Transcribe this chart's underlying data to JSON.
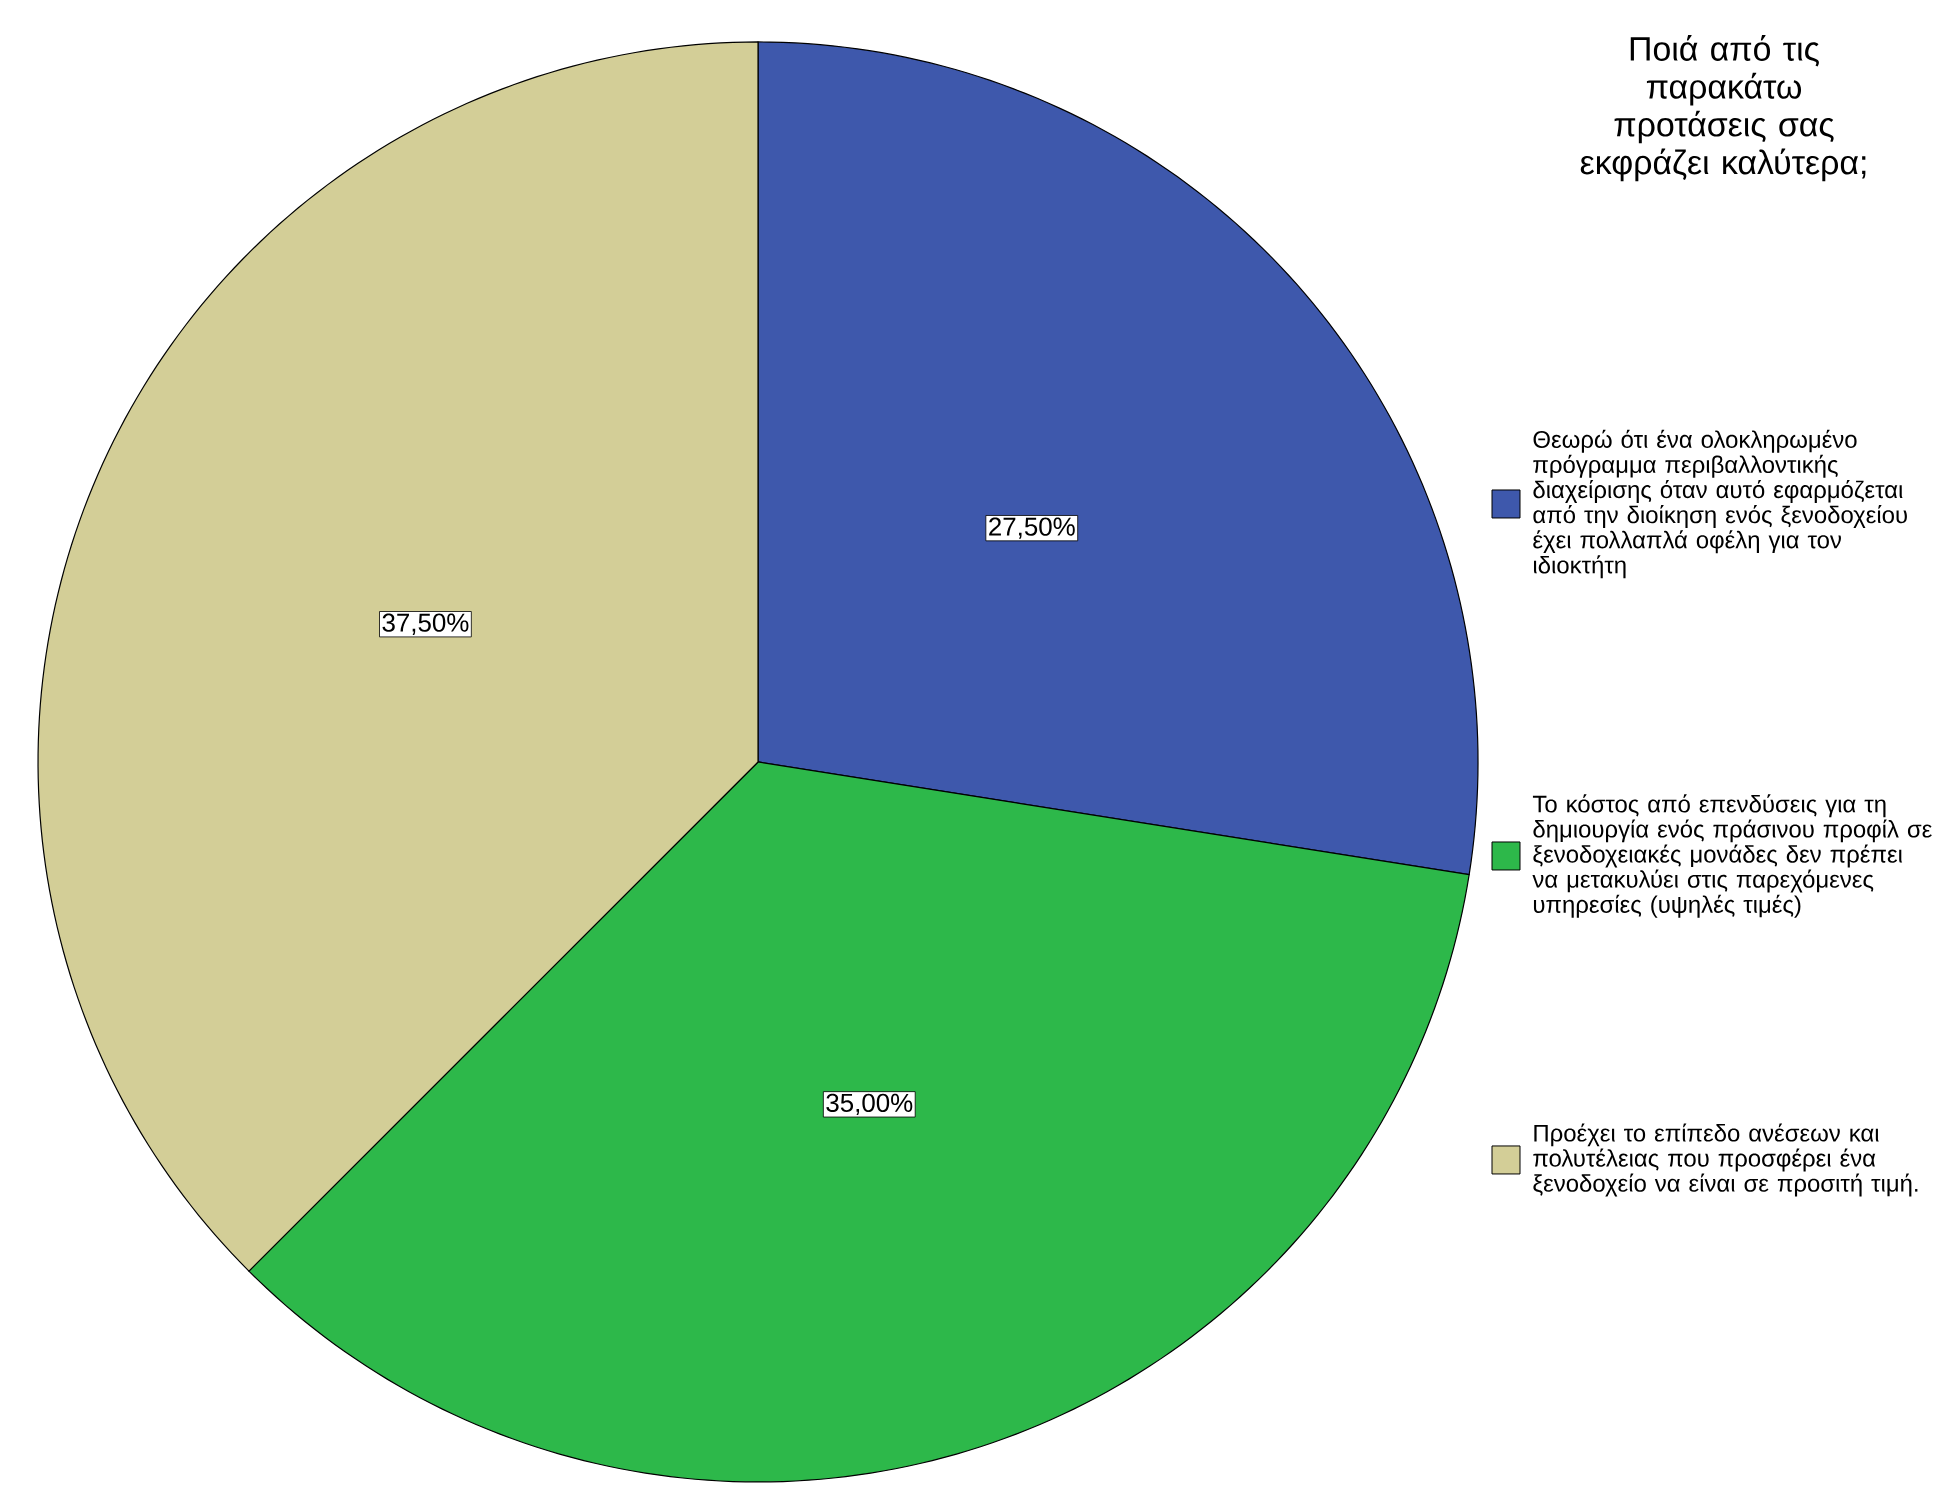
{
  "chart_data": {
    "type": "pie",
    "legend_title": "Ποιά από τις παρακάτω προτάσεις σας εκφράζει καλύτερα;",
    "categories": [
      "Θεωρώ ότι ένα ολοκληρωμένο πρόγραμμα περιβαλλοντικής διαχείρισης όταν αυτό εφαρμόζεται από την διοίκηση ενός ξενοδοχείου έχει πολλαπλά οφέλη για τον ιδιοκτήτη",
      "Το κόστος από επενδύσεις για τη δημιουργία ενός πράσινου προφίλ σε ξενοδοχειακές μονάδες δεν πρέπει να μετακυλύει στις παρεχόμενες υπηρεσίες (υψηλές τιμές)",
      "Προέχει το επίπεδο ανέσεων και πολυτέλειας που προσφέρει ένα ξενοδοχείο να είναι σε προσιτή τιμή."
    ],
    "values": [
      27.5,
      35.0,
      37.5
    ],
    "colors": [
      "#3e58ac",
      "#2db84a",
      "#d3ce97"
    ],
    "value_labels": [
      "27,50%",
      "35,00%",
      "37,50%"
    ],
    "legend": "right"
  }
}
